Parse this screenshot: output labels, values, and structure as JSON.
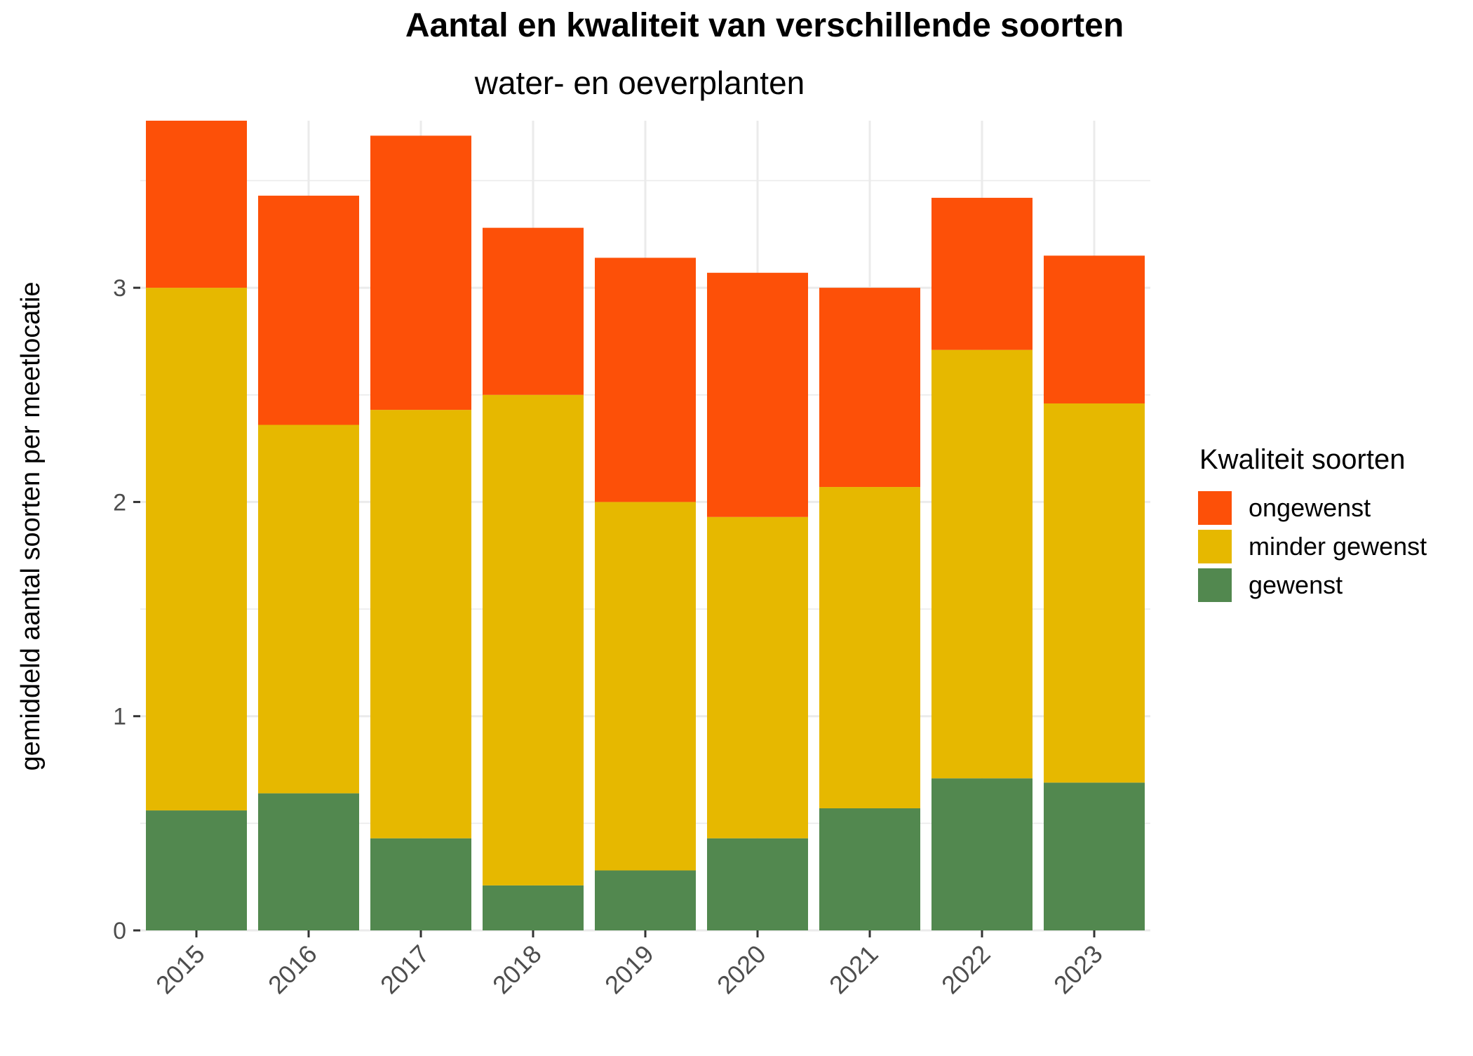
{
  "chart_data": {
    "type": "bar",
    "stacked": true,
    "title": "Aantal en kwaliteit van verschillende soorten",
    "subtitle": "water- en oeverplanten",
    "xlabel": "",
    "ylabel": "gemiddeld aantal soorten per meetlocatie",
    "ylim": [
      0,
      3.78
    ],
    "yticks": [
      "0",
      "1",
      "2",
      "3"
    ],
    "grid": true,
    "categories": [
      "2015",
      "2016",
      "2017",
      "2018",
      "2019",
      "2020",
      "2021",
      "2022",
      "2023"
    ],
    "legend": {
      "title": "Kwaliteit soorten",
      "position": "right",
      "items": [
        "ongewenst",
        "minder gewenst",
        "gewenst"
      ]
    },
    "series": [
      {
        "name": "gewenst",
        "color": "#52884F",
        "values": [
          0.56,
          0.64,
          0.43,
          0.21,
          0.28,
          0.43,
          0.57,
          0.71,
          0.69
        ]
      },
      {
        "name": "minder gewenst",
        "color": "#E6B800",
        "values": [
          2.44,
          1.72,
          2.0,
          2.29,
          1.72,
          1.5,
          1.5,
          2.0,
          1.77
        ]
      },
      {
        "name": "ongewenst",
        "color": "#FD5008",
        "values": [
          0.78,
          1.07,
          1.28,
          0.78,
          1.14,
          1.14,
          0.93,
          0.71,
          0.69
        ]
      }
    ]
  }
}
